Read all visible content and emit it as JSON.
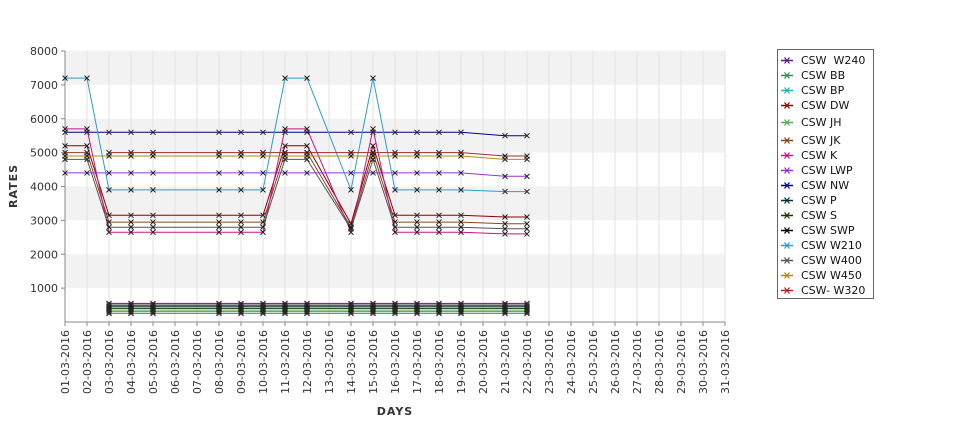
{
  "chart_data": {
    "type": "line",
    "title": "",
    "xlabel": "DAYS",
    "ylabel": "RATES",
    "ylim": [
      0,
      8000
    ],
    "yticks": [
      "1000",
      "2000",
      "3000",
      "4000",
      "5000",
      "6000",
      "7000",
      "8000"
    ],
    "grid": "alternating horizontal bands with vertical grid lines",
    "legend_position": "right",
    "categories": [
      "01-03-2016",
      "02-03-2016",
      "03-03-2016",
      "04-03-2016",
      "05-03-2016",
      "06-03-2016",
      "07-03-2016",
      "08-03-2016",
      "09-03-2016",
      "10-03-2016",
      "11-03-2016",
      "12-03-2016",
      "13-03-2016",
      "14-03-2016",
      "15-03-2016",
      "16-03-2016",
      "17-03-2016",
      "18-03-2016",
      "19-03-2016",
      "20-03-2016",
      "21-03-2016",
      "22-03-2016",
      "23-03-2016",
      "24-03-2016",
      "25-03-2016",
      "26-03-2016",
      "27-03-2016",
      "28-03-2016",
      "29-03-2016",
      "30-03-2016",
      "31-03-2016"
    ],
    "x": [
      "01-03-2016",
      "02-03-2016",
      "03-03-2016",
      "04-03-2016",
      "05-03-2016",
      "08-03-2016",
      "09-03-2016",
      "10-03-2016",
      "11-03-2016",
      "12-03-2016",
      "14-03-2016",
      "15-03-2016",
      "16-03-2016",
      "17-03-2016",
      "18-03-2016",
      "19-03-2016",
      "21-03-2016",
      "22-03-2016"
    ],
    "series": [
      {
        "name": "CSW  W240",
        "color": "#5a1a8a",
        "values": [
          null,
          null,
          550,
          550,
          550,
          550,
          550,
          550,
          550,
          550,
          550,
          550,
          550,
          550,
          550,
          550,
          550,
          550
        ]
      },
      {
        "name": "CSW BB",
        "color": "#2e8b57",
        "values": [
          null,
          null,
          300,
          300,
          300,
          300,
          300,
          300,
          300,
          300,
          300,
          300,
          300,
          300,
          300,
          300,
          300,
          300
        ]
      },
      {
        "name": "CSW BP",
        "color": "#20b2aa",
        "values": [
          null,
          null,
          250,
          250,
          250,
          250,
          250,
          250,
          250,
          250,
          250,
          250,
          250,
          250,
          250,
          250,
          250,
          250
        ]
      },
      {
        "name": "CSW DW",
        "color": "#8b0000",
        "values": [
          5200,
          5200,
          3150,
          3150,
          3150,
          3150,
          3150,
          3150,
          5200,
          5200,
          2900,
          5200,
          3150,
          3150,
          3150,
          3150,
          3100,
          3100
        ]
      },
      {
        "name": "CSW JH",
        "color": "#4caf50",
        "values": [
          null,
          null,
          350,
          350,
          350,
          350,
          350,
          350,
          350,
          350,
          350,
          350,
          350,
          350,
          350,
          350,
          350,
          350
        ]
      },
      {
        "name": "CSW JK",
        "color": "#8b4513",
        "values": [
          5000,
          5000,
          2950,
          2950,
          2950,
          2950,
          2950,
          2950,
          5000,
          5000,
          2800,
          5000,
          2950,
          2950,
          2950,
          2950,
          2900,
          2900
        ]
      },
      {
        "name": "CSW K",
        "color": "#c71585",
        "values": [
          5700,
          5700,
          2650,
          2650,
          2650,
          2650,
          2650,
          2650,
          5700,
          5700,
          2650,
          5700,
          2650,
          2650,
          2650,
          2650,
          2600,
          2600
        ]
      },
      {
        "name": "CSW LWP",
        "color": "#9932cc",
        "values": [
          4400,
          4400,
          4400,
          4400,
          4400,
          4400,
          4400,
          4400,
          4400,
          4400,
          4400,
          4400,
          4400,
          4400,
          4400,
          4400,
          4300,
          4300
        ]
      },
      {
        "name": "CSW NW",
        "color": "#00008b",
        "values": [
          5600,
          5600,
          5600,
          5600,
          5600,
          5600,
          5600,
          5600,
          5600,
          5600,
          5600,
          5600,
          5600,
          5600,
          5600,
          5600,
          5500,
          5500
        ]
      },
      {
        "name": "CSW P",
        "color": "#003333",
        "values": [
          null,
          null,
          450,
          450,
          450,
          450,
          450,
          450,
          450,
          450,
          450,
          450,
          450,
          450,
          450,
          450,
          450,
          450
        ]
      },
      {
        "name": "CSW S",
        "color": "#1a3300",
        "values": [
          null,
          null,
          400,
          400,
          400,
          400,
          400,
          400,
          400,
          400,
          400,
          400,
          400,
          400,
          400,
          400,
          400,
          400
        ]
      },
      {
        "name": "CSW SWP",
        "color": "#000000",
        "values": [
          null,
          null,
          500,
          500,
          500,
          500,
          500,
          500,
          500,
          500,
          500,
          500,
          500,
          500,
          500,
          500,
          500,
          500
        ]
      },
      {
        "name": "CSW W210",
        "color": "#3399cc",
        "values": [
          7200,
          7200,
          3900,
          3900,
          3900,
          3900,
          3900,
          3900,
          7200,
          7200,
          3900,
          7200,
          3900,
          3900,
          3900,
          3900,
          3850,
          3850
        ]
      },
      {
        "name": "CSW W400",
        "color": "#555555",
        "values": [
          4800,
          4800,
          2800,
          2800,
          2800,
          2800,
          2800,
          2800,
          4800,
          4800,
          2750,
          4800,
          2800,
          2800,
          2800,
          2800,
          2750,
          2750
        ]
      },
      {
        "name": "CSW W450",
        "color": "#b8860b",
        "values": [
          4900,
          4900,
          4900,
          4900,
          4900,
          4900,
          4900,
          4900,
          4900,
          4900,
          4900,
          4900,
          4900,
          4900,
          4900,
          4900,
          4800,
          4800
        ]
      },
      {
        "name": "CSW- W320",
        "color": "#a52a2a",
        "values": [
          null,
          null,
          5000,
          5000,
          5000,
          5000,
          5000,
          5000,
          5000,
          5000,
          5000,
          5000,
          5000,
          5000,
          5000,
          5000,
          4900,
          4900
        ]
      }
    ]
  }
}
